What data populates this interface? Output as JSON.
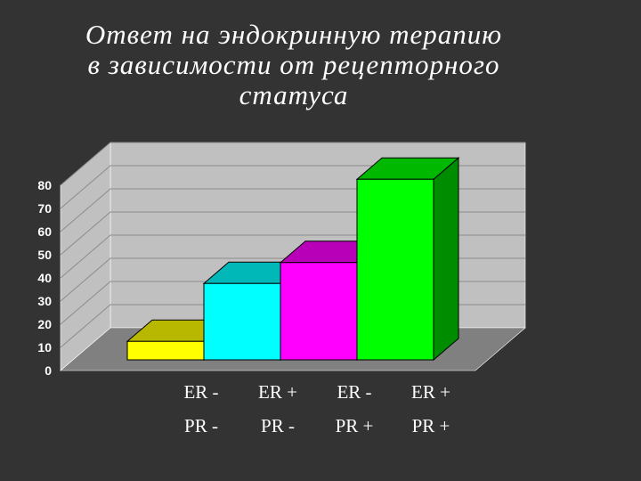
{
  "title_lines": [
    "Ответ на эндокринную терапию",
    "в зависимости от рецепторного",
    "статуса"
  ],
  "colors": {
    "background": "#333333",
    "wall": "#c0c0c0",
    "floor": "#808080",
    "grid": "#8c8c8c"
  },
  "chart_data": {
    "type": "bar",
    "title": "Ответ на эндокринную терапию в зависимости от рецепторного статуса",
    "categories": [
      [
        "ER -",
        "PR -"
      ],
      [
        "ER +",
        "PR -"
      ],
      [
        "ER -",
        "PR +"
      ],
      [
        "ER +",
        "PR +"
      ]
    ],
    "values": [
      8,
      33,
      42,
      78
    ],
    "bar_colors": [
      "#ffff00",
      "#00ffff",
      "#ff00ff",
      "#00ff00"
    ],
    "ylim": [
      0,
      80
    ],
    "yticks": [
      0,
      10,
      20,
      30,
      40,
      50,
      60,
      70,
      80
    ],
    "grid": true,
    "style": "3d"
  }
}
